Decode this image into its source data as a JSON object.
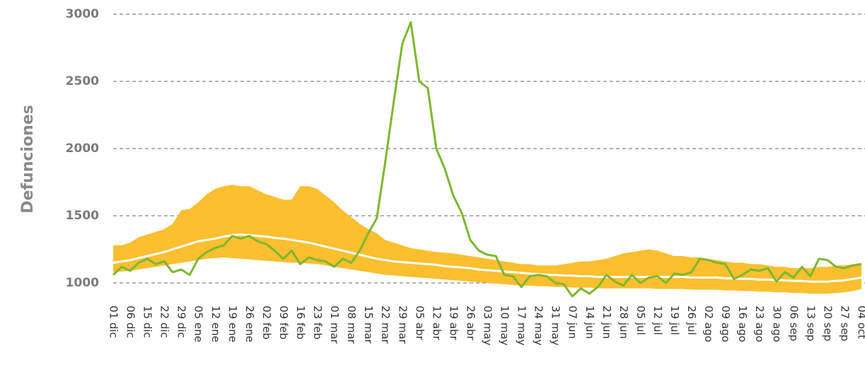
{
  "chart_data": {
    "type": "line",
    "y_label": "Defunciones",
    "categories": [
      "01 dic",
      null,
      "06 dic",
      null,
      "15 dic",
      null,
      "22 dic",
      null,
      "29 dic",
      null,
      "05 ene",
      null,
      "12 ene",
      null,
      "19 ene",
      null,
      "26 ene",
      null,
      "02 feb",
      null,
      "09 feb",
      null,
      "16 feb",
      null,
      "23 feb",
      null,
      "01 mar",
      null,
      "08 mar",
      null,
      "15 mar",
      null,
      "22 mar",
      null,
      "29 mar",
      null,
      "05 abr",
      null,
      "12 abr",
      null,
      "19 abr",
      null,
      "26 abr",
      null,
      "03 may",
      null,
      "10 may",
      null,
      "17 may",
      null,
      "24 may",
      null,
      "31 may",
      null,
      "07 jun",
      null,
      "14 jun",
      null,
      "21 jun",
      null,
      "28 jun",
      null,
      "05 jul",
      null,
      "12 jul",
      null,
      "19 jul",
      null,
      "26 jul",
      null,
      "02 ago",
      null,
      "09 ago",
      null,
      "16 ago",
      null,
      "23 ago",
      null,
      "30 ago",
      null,
      "06 sep",
      null,
      "13 sep",
      null,
      "20 sep",
      null,
      "27 sep",
      null,
      "04 oct"
    ],
    "band": {
      "color": "#fbbf2f",
      "lower": [
        1080,
        1085,
        1090,
        1100,
        1110,
        1120,
        1130,
        1140,
        1150,
        1160,
        1170,
        1180,
        1185,
        1190,
        1185,
        1180,
        1175,
        1170,
        1165,
        1160,
        1155,
        1150,
        1150,
        1145,
        1140,
        1130,
        1120,
        1110,
        1100,
        1090,
        1080,
        1070,
        1060,
        1055,
        1050,
        1045,
        1040,
        1035,
        1030,
        1025,
        1020,
        1015,
        1010,
        1005,
        1000,
        995,
        990,
        985,
        980,
        980,
        975,
        975,
        970,
        970,
        965,
        965,
        965,
        960,
        960,
        960,
        960,
        960,
        960,
        960,
        955,
        955,
        955,
        955,
        950,
        950,
        950,
        950,
        945,
        945,
        940,
        940,
        935,
        935,
        930,
        930,
        925,
        925,
        920,
        920,
        920,
        925,
        930,
        940,
        955
      ],
      "upper": [
        1280,
        1280,
        1300,
        1340,
        1360,
        1380,
        1400,
        1440,
        1540,
        1550,
        1600,
        1660,
        1700,
        1720,
        1730,
        1720,
        1720,
        1690,
        1660,
        1640,
        1620,
        1620,
        1720,
        1720,
        1700,
        1650,
        1600,
        1540,
        1490,
        1440,
        1400,
        1370,
        1320,
        1300,
        1280,
        1260,
        1250,
        1240,
        1230,
        1225,
        1220,
        1210,
        1200,
        1190,
        1180,
        1170,
        1160,
        1150,
        1140,
        1140,
        1130,
        1130,
        1130,
        1140,
        1150,
        1160,
        1160,
        1170,
        1180,
        1200,
        1220,
        1230,
        1240,
        1250,
        1240,
        1220,
        1200,
        1200,
        1190,
        1190,
        1180,
        1170,
        1160,
        1150,
        1150,
        1140,
        1140,
        1130,
        1120,
        1120,
        1110,
        1110,
        1110,
        1120,
        1120,
        1130,
        1130,
        1140,
        1150
      ]
    },
    "series": [
      {
        "color": "#ffffff",
        "values": [
          1150,
          1160,
          1170,
          1185,
          1200,
          1215,
          1230,
          1250,
          1270,
          1290,
          1310,
          1320,
          1330,
          1345,
          1355,
          1360,
          1355,
          1350,
          1345,
          1335,
          1330,
          1320,
          1310,
          1300,
          1285,
          1270,
          1255,
          1240,
          1225,
          1210,
          1195,
          1180,
          1170,
          1160,
          1155,
          1150,
          1145,
          1140,
          1135,
          1125,
          1120,
          1115,
          1110,
          1100,
          1095,
          1090,
          1085,
          1080,
          1075,
          1070,
          1065,
          1060,
          1060,
          1055,
          1055,
          1050,
          1050,
          1045,
          1045,
          1045,
          1045,
          1045,
          1045,
          1045,
          1045,
          1045,
          1045,
          1045,
          1040,
          1040,
          1040,
          1040,
          1035,
          1035,
          1030,
          1030,
          1025,
          1025,
          1020,
          1020,
          1015,
          1015,
          1010,
          1010,
          1010,
          1015,
          1020,
          1030,
          1040
        ]
      },
      {
        "color": "#7cb82f",
        "values": [
          1060,
          1120,
          1090,
          1150,
          1180,
          1140,
          1160,
          1080,
          1100,
          1060,
          1180,
          1230,
          1260,
          1280,
          1350,
          1330,
          1350,
          1310,
          1290,
          1240,
          1180,
          1240,
          1140,
          1190,
          1170,
          1160,
          1120,
          1180,
          1150,
          1240,
          1370,
          1480,
          1900,
          2350,
          2780,
          2940,
          2500,
          2450,
          2000,
          1850,
          1650,
          1520,
          1320,
          1240,
          1210,
          1200,
          1060,
          1050,
          970,
          1050,
          1060,
          1050,
          1000,
          990,
          900,
          960,
          920,
          970,
          1060,
          1010,
          980,
          1060,
          1000,
          1040,
          1050,
          1000,
          1070,
          1060,
          1080,
          1180,
          1170,
          1150,
          1140,
          1030,
          1060,
          1100,
          1090,
          1110,
          1010,
          1080,
          1040,
          1120,
          1050,
          1180,
          1170,
          1120,
          1110,
          1130,
          1140
        ]
      }
    ],
    "ylim": [
      850,
      3000
    ],
    "yticks": [
      1000,
      1500,
      2000,
      2500,
      3000
    ],
    "grid": true
  }
}
